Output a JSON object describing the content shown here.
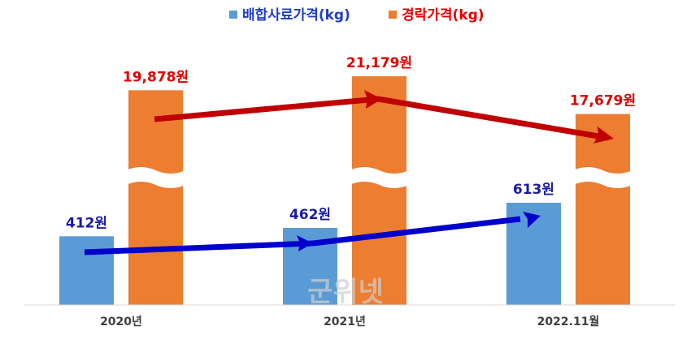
{
  "chart_data": {
    "type": "bar",
    "categories": [
      "2020년",
      "2021년",
      "2022.11월"
    ],
    "series": [
      {
        "name": "배합사료가격(kg)",
        "color": "#5b9bd5",
        "values": [
          412,
          462,
          613
        ],
        "value_labels": [
          "412원",
          "462원",
          "613원"
        ]
      },
      {
        "name": "경락가격(kg)",
        "color": "#ed7d31",
        "values": [
          19878,
          21179,
          17679
        ],
        "value_labels": [
          "19,878원",
          "21,179원",
          "17,679원"
        ]
      }
    ],
    "watermark": "군위넷"
  }
}
